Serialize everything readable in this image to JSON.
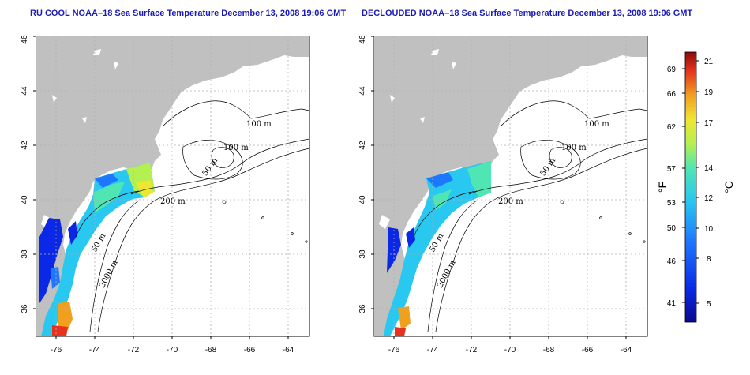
{
  "panels": [
    {
      "title": "RU COOL NOAA–18 Sea Surface Temperature December 13, 2008 19:06 GMT",
      "x_ticks": [
        "-76",
        "-74",
        "-72",
        "-70",
        "-68",
        "-66",
        "-64"
      ],
      "y_ticks": [
        "36",
        "38",
        "40",
        "42",
        "44",
        "46"
      ],
      "isobaths": [
        {
          "label": "100 m"
        },
        {
          "label": "100 m"
        },
        {
          "label": "50 m"
        },
        {
          "label": "200 m"
        },
        {
          "label": "50 m"
        },
        {
          "label": "2000 m"
        }
      ]
    },
    {
      "title": "DECLOUDED NOAA–18 Sea Surface Temperature December 13, 2008 19:06 GMT",
      "x_ticks": [
        "-76",
        "-74",
        "-72",
        "-70",
        "-68",
        "-66",
        "-64"
      ],
      "y_ticks": [
        "36",
        "38",
        "40",
        "42",
        "44",
        "46"
      ],
      "isobaths": [
        {
          "label": "100 m"
        },
        {
          "label": "100 m"
        },
        {
          "label": "50 m"
        },
        {
          "label": "200 m"
        },
        {
          "label": "50 m"
        },
        {
          "label": "2000 m"
        }
      ]
    }
  ],
  "colorbar": {
    "fahrenheit_label": "°F",
    "celsius_label": "°C",
    "fahrenheit_ticks": [
      "69",
      "66",
      "62",
      "57",
      "53",
      "50",
      "46",
      "41"
    ],
    "celsius_ticks": [
      "21",
      "19",
      "17",
      "14",
      "12",
      "10",
      "8",
      "5"
    ]
  },
  "colors": {
    "land": "#c0c0c0",
    "title": "#1c1cb8",
    "ocean_missing": "#ffffff",
    "grid": "#b0b0b0"
  },
  "chart_data": [
    {
      "type": "heatmap",
      "title": "RU COOL NOAA–18 Sea Surface Temperature December 13, 2008 19:06 GMT",
      "xlim": [
        -77.2,
        -63
      ],
      "ylim": [
        35,
        46
      ],
      "grid": true
    },
    {
      "type": "heatmap",
      "title": "DECLOUDED NOAA–18 Sea Surface Temperature December 13, 2008 19:06 GMT",
      "xlim": [
        -77.2,
        -63
      ],
      "ylim": [
        35,
        46
      ],
      "grid": true
    }
  ]
}
